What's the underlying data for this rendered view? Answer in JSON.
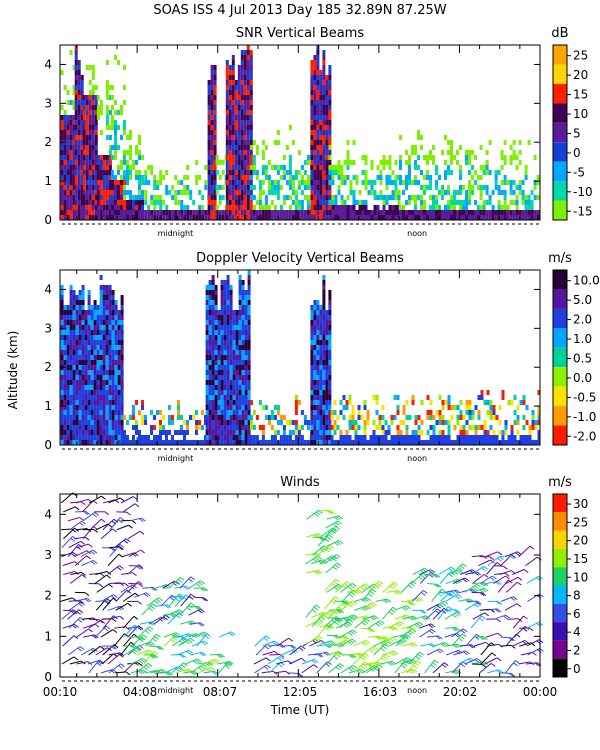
{
  "header": "SOAS ISS    4 Jul 2013 Day 185 32.89N   87.25W",
  "ylabel": "Altitude (km)",
  "xlabel": "Time (UT)",
  "time_ticks": [
    "00:10",
    "04:08",
    "08:07",
    "12:05",
    "16:03",
    "20:02",
    "00:00"
  ],
  "chart_data": [
    {
      "type": "heatmap",
      "title": "SNR Vertical Beams",
      "unit": "dB",
      "xlabel": "Time (UT)",
      "ylabel": "Altitude (km)",
      "ylim": [
        0,
        4.5
      ],
      "yticks": [
        0,
        1,
        2,
        3,
        4
      ],
      "xlim_hours": [
        0.17,
        24.0
      ],
      "markers": [
        {
          "label": "midnight",
          "hour": 5.9
        },
        {
          "label": "noon",
          "hour": 17.9
        }
      ],
      "colorbar": {
        "ticks": [
          "25",
          "20",
          "15",
          "10",
          "5",
          "0",
          "-5",
          "-10",
          "-15"
        ],
        "colors": [
          "#ffa500",
          "#ffd700",
          "#ff2000",
          "#400050",
          "#5a1d9a",
          "#1a3fd6",
          "#00a8ff",
          "#00d8a8",
          "#7cf000"
        ]
      },
      "columns": [
        {
          "t0": 0.2,
          "t1": 0.9,
          "top": 4.5,
          "band": 0.55,
          "deep": 2.6
        },
        {
          "t0": 0.9,
          "t1": 1.3,
          "top": 4.5,
          "band": 0.4,
          "deep": 4.5
        },
        {
          "t0": 1.3,
          "t1": 2.0,
          "top": 4.5,
          "band": 0.35,
          "deep": 3.2
        },
        {
          "t0": 2.0,
          "t1": 2.7,
          "top": 4.5,
          "band": 0.3,
          "deep": 1.6
        },
        {
          "t0": 2.7,
          "t1": 3.3,
          "top": 4.5,
          "band": 0.3,
          "deep": 0.9
        },
        {
          "t0": 3.3,
          "t1": 4.2,
          "top": 2.3,
          "band": 0.25,
          "deep": 0.5
        },
        {
          "t0": 4.2,
          "t1": 7.5,
          "top": 1.6,
          "band": 0.2,
          "deep": 0.2
        },
        {
          "t0": 7.5,
          "t1": 7.9,
          "top": 4.5,
          "band": 0.2,
          "deep": 4.5
        },
        {
          "t0": 7.9,
          "t1": 8.4,
          "top": 2.0,
          "band": 0.2,
          "deep": 0.2
        },
        {
          "t0": 8.4,
          "t1": 9.6,
          "top": 4.5,
          "band": 0.2,
          "deep": 4.5
        },
        {
          "t0": 9.6,
          "t1": 12.6,
          "top": 2.4,
          "band": 0.2,
          "deep": 0.2
        },
        {
          "t0": 12.6,
          "t1": 13.5,
          "top": 4.5,
          "band": 0.3,
          "deep": 4.5
        },
        {
          "t0": 13.5,
          "t1": 17.0,
          "top": 2.0,
          "band": 0.3,
          "deep": 0.15
        },
        {
          "t0": 17.0,
          "t1": 21.0,
          "top": 2.3,
          "band": 0.2,
          "deep": 0.2
        },
        {
          "t0": 21.0,
          "t1": 23.9,
          "top": 2.1,
          "band": 0.2,
          "deep": 0.2
        }
      ]
    },
    {
      "type": "heatmap",
      "title": "Doppler Velocity Vertical Beams",
      "unit": "m/s",
      "xlabel": "Time (UT)",
      "ylabel": "Altitude (km)",
      "ylim": [
        0,
        4.5
      ],
      "yticks": [
        0,
        1,
        2,
        3,
        4
      ],
      "xlim_hours": [
        0.17,
        24.0
      ],
      "markers": [
        {
          "label": "midnight",
          "hour": 5.9
        },
        {
          "label": "noon",
          "hour": 17.9
        }
      ],
      "colorbar": {
        "ticks": [
          "10.0",
          "5.0",
          "2.0",
          "1.0",
          "0.5",
          "0.0",
          "-0.5",
          "-1.0",
          "-2.0"
        ],
        "colors": [
          "#2a0038",
          "#58159a",
          "#1f3fe0",
          "#00a6ff",
          "#00d09a",
          "#8ef000",
          "#ffe000",
          "#ff9a00",
          "#ff1a00"
        ]
      },
      "columns": [
        {
          "t0": 0.2,
          "t1": 3.3,
          "top": 4.5,
          "band": 0.3,
          "deep": 4.1
        },
        {
          "t0": 3.3,
          "t1": 7.4,
          "top": 1.1,
          "band": 0.3,
          "deep": 0.0
        },
        {
          "t0": 7.4,
          "t1": 9.6,
          "top": 4.4,
          "band": 0.2,
          "deep": 4.4
        },
        {
          "t0": 9.6,
          "t1": 12.6,
          "top": 1.2,
          "band": 0.2,
          "deep": 0.0
        },
        {
          "t0": 12.6,
          "t1": 13.6,
          "top": 4.5,
          "band": 0.2,
          "deep": 4.5
        },
        {
          "t0": 13.6,
          "t1": 24.0,
          "top": 1.4,
          "band": 0.2,
          "deep": 0.0
        }
      ]
    },
    {
      "type": "wind_barbs",
      "title": "Winds",
      "unit": "m/s",
      "xlabel": "Time (UT)",
      "ylabel": "Altitude (km)",
      "ylim": [
        0,
        4.5
      ],
      "yticks": [
        0,
        1,
        2,
        3,
        4
      ],
      "xlim_hours": [
        0.17,
        24.0
      ],
      "markers": [
        {
          "label": "midnight",
          "hour": 5.9
        },
        {
          "label": "noon",
          "hour": 17.9
        }
      ],
      "colorbar": {
        "ticks": [
          "30",
          "25",
          "20",
          "15",
          "10",
          "8",
          "6",
          "4",
          "2",
          "0"
        ],
        "colors": [
          "#ff1a00",
          "#ff8c00",
          "#ffd200",
          "#90f000",
          "#1ed060",
          "#00b8ff",
          "#3a4ae6",
          "#3a10b0",
          "#7a0090",
          "#000000"
        ]
      },
      "speed_levels": [
        0,
        2,
        4,
        6,
        8,
        10,
        15,
        20,
        25,
        30
      ],
      "clusters": [
        {
          "t0": 0.2,
          "t1": 3.6,
          "h0": 0.1,
          "h1": 4.3,
          "spd": 4
        },
        {
          "t0": 3.3,
          "t1": 8.2,
          "h0": 0.1,
          "h1": 1.2,
          "spd": 12
        },
        {
          "t0": 3.8,
          "t1": 6.8,
          "h0": 1.3,
          "h1": 2.4,
          "spd": 9
        },
        {
          "t0": 9.8,
          "t1": 13.0,
          "h0": 0.1,
          "h1": 0.8,
          "spd": 6
        },
        {
          "t0": 12.3,
          "t1": 13.4,
          "h0": 0.8,
          "h1": 4.3,
          "spd": 14
        },
        {
          "t0": 13.4,
          "t1": 17.6,
          "h0": 0.1,
          "h1": 2.2,
          "spd": 15
        },
        {
          "t0": 17.6,
          "t1": 20.6,
          "h0": 0.1,
          "h1": 2.6,
          "spd": 9
        },
        {
          "t0": 20.6,
          "t1": 23.4,
          "h0": 0.1,
          "h1": 3.0,
          "spd": 5
        }
      ]
    }
  ]
}
